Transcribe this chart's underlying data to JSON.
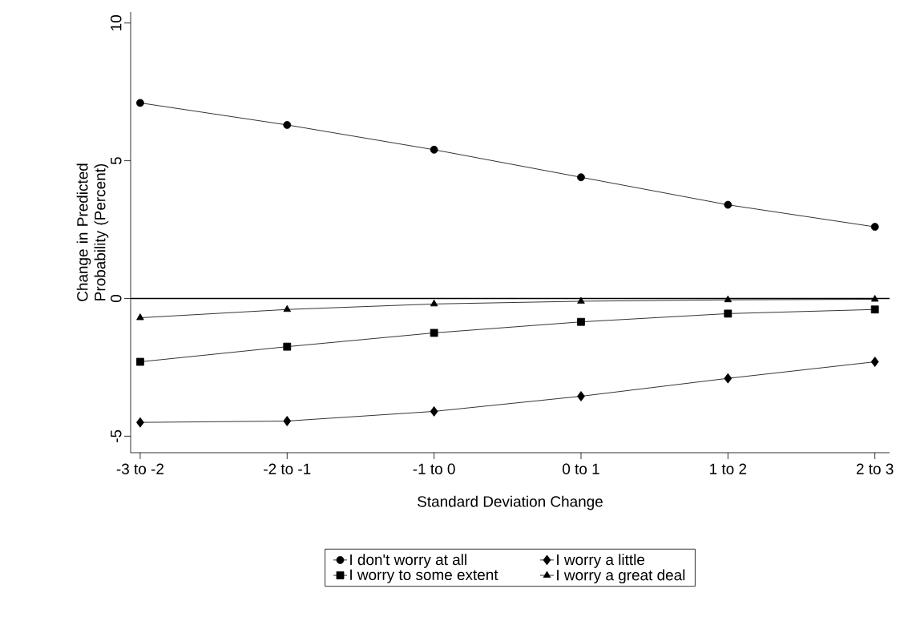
{
  "chart_data": {
    "type": "line",
    "xlabel": "Standard Deviation Change",
    "ylabel": "Change in Predicted Probability (Percent)",
    "categories": [
      "-3 to -2",
      "-2 to -1",
      "-1 to 0",
      "0 to 1",
      "1 to 2",
      "2 to 3"
    ],
    "series": [
      {
        "name": "I don't worry at all",
        "color": "#000000",
        "marker": "circle",
        "values": [
          7.1,
          6.3,
          5.4,
          4.4,
          3.4,
          2.6
        ]
      },
      {
        "name": "I worry a little",
        "color": "#000000",
        "marker": "diamond",
        "values": [
          -4.5,
          -4.45,
          -4.1,
          -3.55,
          -2.9,
          -2.3
        ]
      },
      {
        "name": "I worry to some extent",
        "color": "#000000",
        "marker": "square",
        "values": [
          -2.3,
          -1.75,
          -1.25,
          -0.85,
          -0.55,
          -0.4
        ]
      },
      {
        "name": "I worry a great deal",
        "color": "#000000",
        "marker": "triangle",
        "values": [
          -0.7,
          -0.4,
          -0.2,
          -0.1,
          -0.05,
          -0.03
        ]
      }
    ],
    "ylim": [
      -5.6,
      10.4
    ],
    "yticks": [
      -5,
      0,
      5,
      10
    ],
    "ref_lines": [
      {
        "axis": "y",
        "value": 0,
        "color": "#000000"
      }
    ],
    "grid": false,
    "legend": "bottom",
    "line_style": "solid"
  }
}
